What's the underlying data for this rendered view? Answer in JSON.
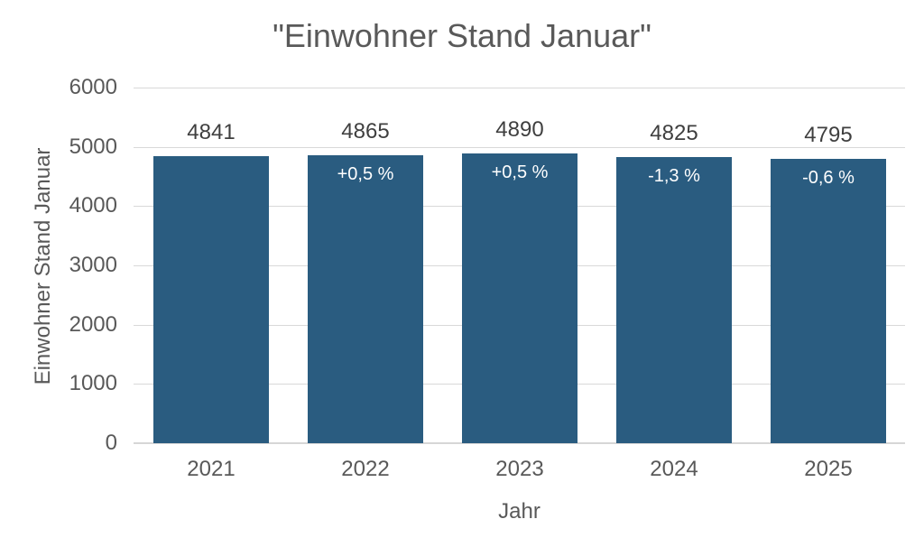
{
  "chart_data": {
    "type": "bar",
    "title": "\"Einwohner Stand Januar\"",
    "xlabel": "Jahr",
    "ylabel": "Einwohner Stand Januar",
    "categories": [
      "2021",
      "2022",
      "2023",
      "2024",
      "2025"
    ],
    "values": [
      4841,
      4865,
      4890,
      4825,
      4795
    ],
    "value_labels": [
      "4841",
      "4865",
      "4890",
      "4825",
      "4795"
    ],
    "delta_labels": [
      "",
      "+0,5 %",
      "+0,5 %",
      "-1,3 %",
      "-0,6 %"
    ],
    "ylim": [
      0,
      6000
    ],
    "ytick_step": 1000,
    "ytick_labels": [
      "0",
      "1000",
      "2000",
      "3000",
      "4000",
      "5000",
      "6000"
    ],
    "grid": true,
    "legend": false,
    "colors": {
      "bar": "#2a5c80",
      "grid": "#d9d9d9",
      "axis_line": "#d6d6d6",
      "title": "#595959",
      "tick": "#595959",
      "value_label": "#3f3f3f",
      "delta_label": "#ffffff",
      "background": "#ffffff"
    }
  }
}
